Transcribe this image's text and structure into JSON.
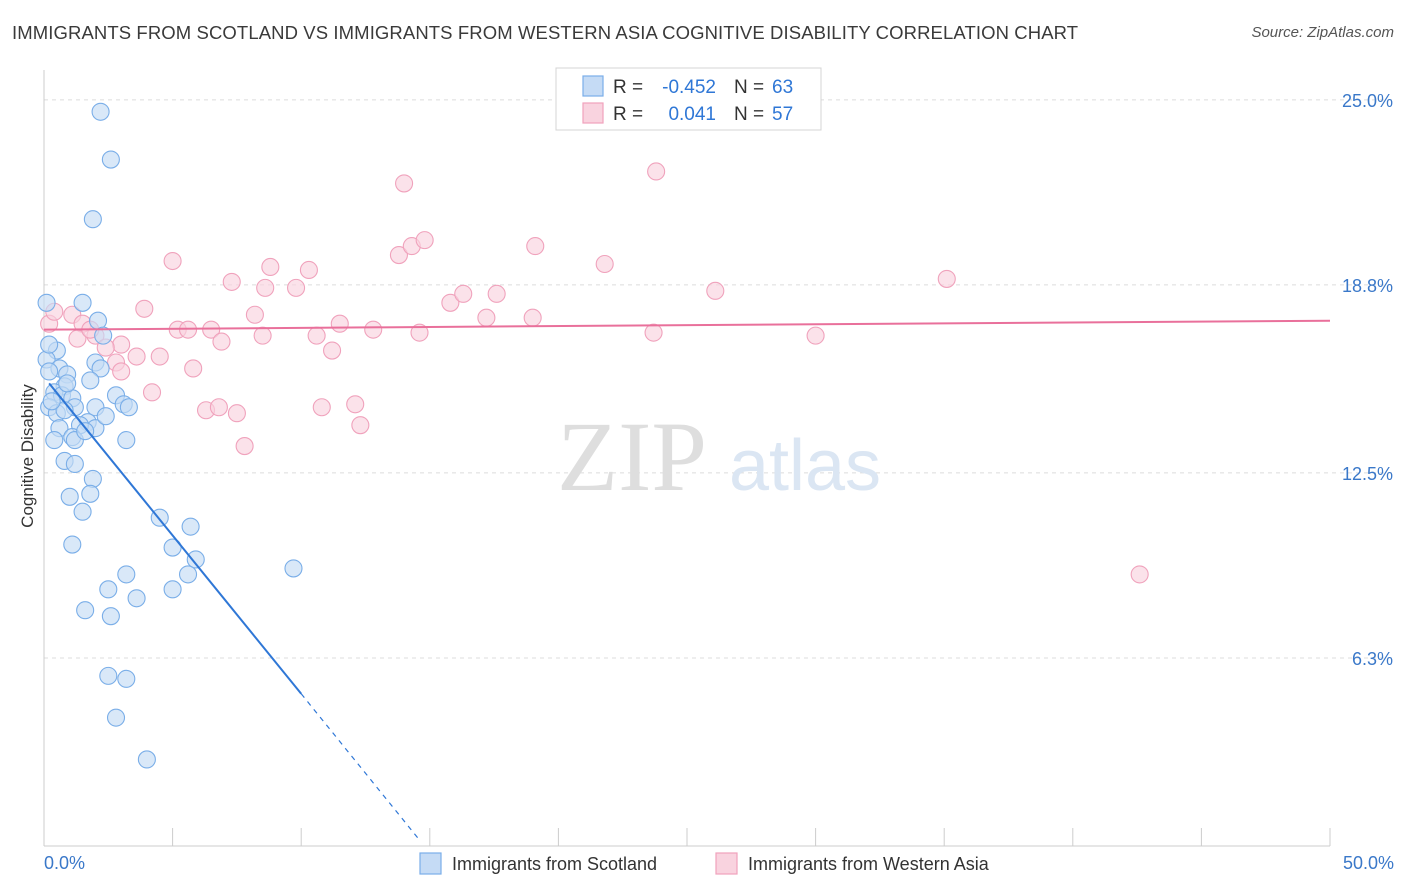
{
  "chart_data": {
    "type": "scatter",
    "title": "IMMIGRANTS FROM SCOTLAND VS IMMIGRANTS FROM WESTERN ASIA COGNITIVE DISABILITY CORRELATION CHART",
    "source": "Source: ZipAtlas.com",
    "ylabel": "Cognitive Disability",
    "xlabel": "",
    "xlim": [
      0,
      50
    ],
    "ylim": [
      0,
      26
    ],
    "x_tick_labels": {
      "left": "0.0%",
      "right": "50.0%"
    },
    "y_ticks": [
      {
        "value": 25.0,
        "label": "25.0%"
      },
      {
        "value": 18.8,
        "label": "18.8%"
      },
      {
        "value": 12.5,
        "label": "12.5%"
      },
      {
        "value": 6.3,
        "label": "6.3%"
      }
    ],
    "watermark": {
      "zip": "ZIP",
      "atlas": "atlas"
    },
    "legend_box": {
      "rows": [
        {
          "r_label": "R =",
          "r_value": "-0.452",
          "n_label": "N =",
          "n_value": "63"
        },
        {
          "r_label": "R =",
          "r_value": "0.041",
          "n_label": "N =",
          "n_value": "57"
        }
      ]
    },
    "series": [
      {
        "name": "Immigrants from Scotland",
        "color": "#7aaee8",
        "fill": "#c5dbf5",
        "line_color": "#2f77d6",
        "trend": {
          "x0": 0.2,
          "y0": 15.5,
          "x1": 10.0,
          "y1": 5.1,
          "dash_to_x": 14.6,
          "dash_to_y": 0.2
        },
        "points": [
          [
            2.2,
            24.6
          ],
          [
            2.6,
            23.0
          ],
          [
            1.9,
            21.0
          ],
          [
            0.1,
            18.2
          ],
          [
            1.5,
            18.2
          ],
          [
            2.1,
            17.6
          ],
          [
            2.3,
            17.1
          ],
          [
            0.5,
            16.6
          ],
          [
            2.0,
            16.2
          ],
          [
            0.1,
            16.3
          ],
          [
            0.6,
            16.0
          ],
          [
            2.2,
            16.0
          ],
          [
            0.2,
            15.9
          ],
          [
            0.9,
            15.8
          ],
          [
            1.8,
            15.6
          ],
          [
            0.8,
            15.4
          ],
          [
            0.4,
            15.2
          ],
          [
            0.7,
            15.1
          ],
          [
            1.1,
            15.0
          ],
          [
            2.8,
            15.1
          ],
          [
            3.1,
            14.8
          ],
          [
            0.2,
            14.7
          ],
          [
            1.2,
            14.7
          ],
          [
            2.0,
            14.7
          ],
          [
            3.3,
            14.7
          ],
          [
            0.5,
            14.5
          ],
          [
            0.8,
            14.6
          ],
          [
            1.7,
            14.2
          ],
          [
            2.0,
            14.0
          ],
          [
            0.6,
            14.0
          ],
          [
            1.4,
            14.1
          ],
          [
            1.1,
            13.7
          ],
          [
            0.4,
            13.6
          ],
          [
            1.2,
            13.6
          ],
          [
            3.2,
            13.6
          ],
          [
            0.8,
            12.9
          ],
          [
            1.2,
            12.8
          ],
          [
            1.9,
            12.3
          ],
          [
            1.0,
            11.7
          ],
          [
            1.8,
            11.8
          ],
          [
            1.5,
            11.2
          ],
          [
            4.5,
            11.0
          ],
          [
            5.7,
            10.7
          ],
          [
            1.1,
            10.1
          ],
          [
            5.0,
            10.0
          ],
          [
            5.9,
            9.6
          ],
          [
            9.7,
            9.3
          ],
          [
            3.2,
            9.1
          ],
          [
            5.6,
            9.1
          ],
          [
            2.5,
            8.6
          ],
          [
            5.0,
            8.6
          ],
          [
            3.6,
            8.3
          ],
          [
            1.6,
            7.9
          ],
          [
            2.6,
            7.7
          ],
          [
            2.5,
            5.7
          ],
          [
            3.2,
            5.6
          ],
          [
            2.8,
            4.3
          ],
          [
            4.0,
            2.9
          ],
          [
            0.2,
            16.8
          ],
          [
            0.9,
            15.5
          ],
          [
            0.3,
            14.9
          ],
          [
            1.6,
            13.9
          ],
          [
            2.4,
            14.4
          ]
        ]
      },
      {
        "name": "Immigrants from Western Asia",
        "color": "#f0a2bc",
        "fill": "#f9d3df",
        "line_color": "#e9709b",
        "trend": {
          "x0": 0,
          "y0": 17.3,
          "x1": 50,
          "y1": 17.6
        },
        "points": [
          [
            14.0,
            22.2
          ],
          [
            23.8,
            22.6
          ],
          [
            5.0,
            19.6
          ],
          [
            7.3,
            18.9
          ],
          [
            8.8,
            19.4
          ],
          [
            10.3,
            19.3
          ],
          [
            13.8,
            19.8
          ],
          [
            14.3,
            20.1
          ],
          [
            14.8,
            20.3
          ],
          [
            19.1,
            20.1
          ],
          [
            21.8,
            19.5
          ],
          [
            8.6,
            18.7
          ],
          [
            9.8,
            18.7
          ],
          [
            15.8,
            18.2
          ],
          [
            16.3,
            18.5
          ],
          [
            17.6,
            18.5
          ],
          [
            26.1,
            18.6
          ],
          [
            35.1,
            19.0
          ],
          [
            1.1,
            17.8
          ],
          [
            3.9,
            18.0
          ],
          [
            8.2,
            17.8
          ],
          [
            0.2,
            17.5
          ],
          [
            1.5,
            17.5
          ],
          [
            5.2,
            17.3
          ],
          [
            5.6,
            17.3
          ],
          [
            6.5,
            17.3
          ],
          [
            11.5,
            17.5
          ],
          [
            12.8,
            17.3
          ],
          [
            14.6,
            17.2
          ],
          [
            17.2,
            17.7
          ],
          [
            19.0,
            17.7
          ],
          [
            23.7,
            17.2
          ],
          [
            30.0,
            17.1
          ],
          [
            1.3,
            17.0
          ],
          [
            2.0,
            17.1
          ],
          [
            6.9,
            16.9
          ],
          [
            8.5,
            17.1
          ],
          [
            10.6,
            17.1
          ],
          [
            3.0,
            16.8
          ],
          [
            11.2,
            16.6
          ],
          [
            3.6,
            16.4
          ],
          [
            4.5,
            16.4
          ],
          [
            2.8,
            16.2
          ],
          [
            5.8,
            16.0
          ],
          [
            3.0,
            15.9
          ],
          [
            4.2,
            15.2
          ],
          [
            12.1,
            14.8
          ],
          [
            6.3,
            14.6
          ],
          [
            6.8,
            14.7
          ],
          [
            7.5,
            14.5
          ],
          [
            10.8,
            14.7
          ],
          [
            12.3,
            14.1
          ],
          [
            7.8,
            13.4
          ],
          [
            42.6,
            9.1
          ],
          [
            0.4,
            17.9
          ],
          [
            1.8,
            17.3
          ],
          [
            2.4,
            16.7
          ]
        ]
      }
    ]
  },
  "legend": {
    "items": [
      {
        "label": "Immigrants from Scotland"
      },
      {
        "label": "Immigrants from Western Asia"
      }
    ]
  }
}
